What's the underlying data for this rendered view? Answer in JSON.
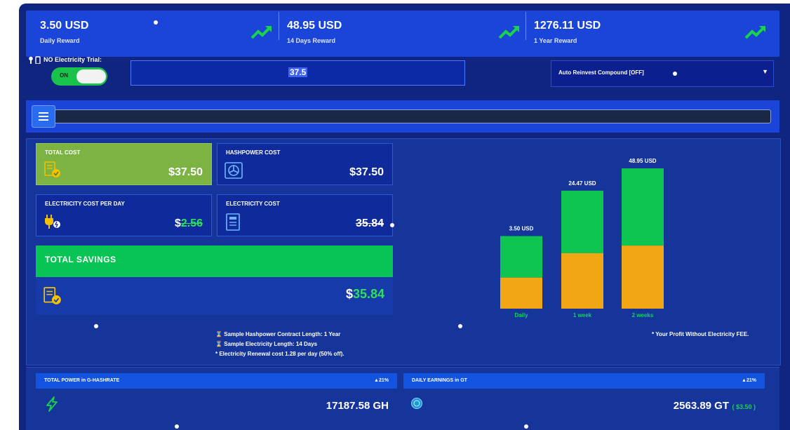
{
  "rewards": [
    {
      "value": "3.50 USD",
      "label": "Daily Reward"
    },
    {
      "value": "48.95 USD",
      "label": "14 Days Reward"
    },
    {
      "value": "1276.11 USD",
      "label": "1 Year Reward"
    }
  ],
  "trial": {
    "label": "NO Electricity Trial:",
    "toggle_text": "ON"
  },
  "amount_input": {
    "value": "37.5"
  },
  "compound_select": {
    "selected": "Auto Reinvest Compound [OFF]"
  },
  "costs": {
    "total_cost": {
      "title": "TOTAL COST",
      "value": "$37.50"
    },
    "hashpower_cost": {
      "title": "HASHPOWER COST",
      "value": "$37.50"
    },
    "electricity_per_day": {
      "title": "ELECTRICITY COST PER DAY",
      "currency": "$",
      "value": "2.56"
    },
    "electricity_cost": {
      "title": "ELECTRICITY COST",
      "value": "35.84"
    }
  },
  "savings": {
    "title": "TOTAL SAVINGS",
    "currency": "$",
    "value": "35.84"
  },
  "notes": [
    "Sample Hashpower Contract Length: 1 Year",
    "Sample Electricity Length: 14 Days",
    "* Electricity Renewal cost 1.28 per day (50% off)."
  ],
  "profit_note": "* Your Profit Without Electricity FEE.",
  "chart_data": {
    "type": "bar",
    "categories": [
      "Daily",
      "1 week",
      "2 weeks"
    ],
    "totals": [
      3.5,
      24.47,
      48.95
    ],
    "value_labels": [
      "3.50 USD",
      "24.47 USD",
      "48.95 USD"
    ],
    "series": [
      {
        "values": [
          1.5,
          11.5,
          22.0
        ]
      },
      {
        "values": [
          2.0,
          12.97,
          26.95
        ]
      }
    ],
    "colors": {
      "lower": "#f0a713",
      "upper": "#0fc552"
    }
  },
  "stats": [
    {
      "title": "TOTAL POWER in G-HASHRATE",
      "pct": "21%",
      "value": "17187.58 GH",
      "extra": ""
    },
    {
      "title": "DAILY EARNINGS in GT",
      "pct": "21%",
      "value": "2563.89 GT",
      "extra": "( $3.50 )"
    }
  ]
}
